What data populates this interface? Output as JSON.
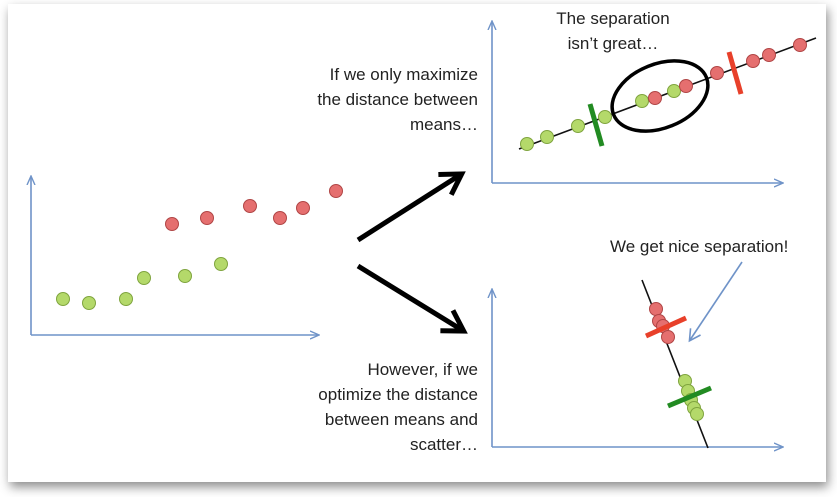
{
  "colors": {
    "axis": "#6f93c8",
    "red_fill": "#e56f6f",
    "red_stroke": "#b04545",
    "green_fill": "#b4d96a",
    "green_stroke": "#7fa43e",
    "arrow": "#000000",
    "marker_red": "#e8402a",
    "marker_green": "#228b22"
  },
  "captions": {
    "top": "If we only maximize\nthe distance between\nmeans…",
    "bottom": "However, if we\noptimize the distance\nbetween means and\nscatter…",
    "separation_bad": "The separation\nisn’t great…",
    "separation_good": "We get nice separation!"
  },
  "icons": {
    "left_arrow": "arrow-up-right-icon",
    "right_arrow": "arrow-down-right-icon",
    "callout_arrow": "arrow-down-left-icon"
  }
}
